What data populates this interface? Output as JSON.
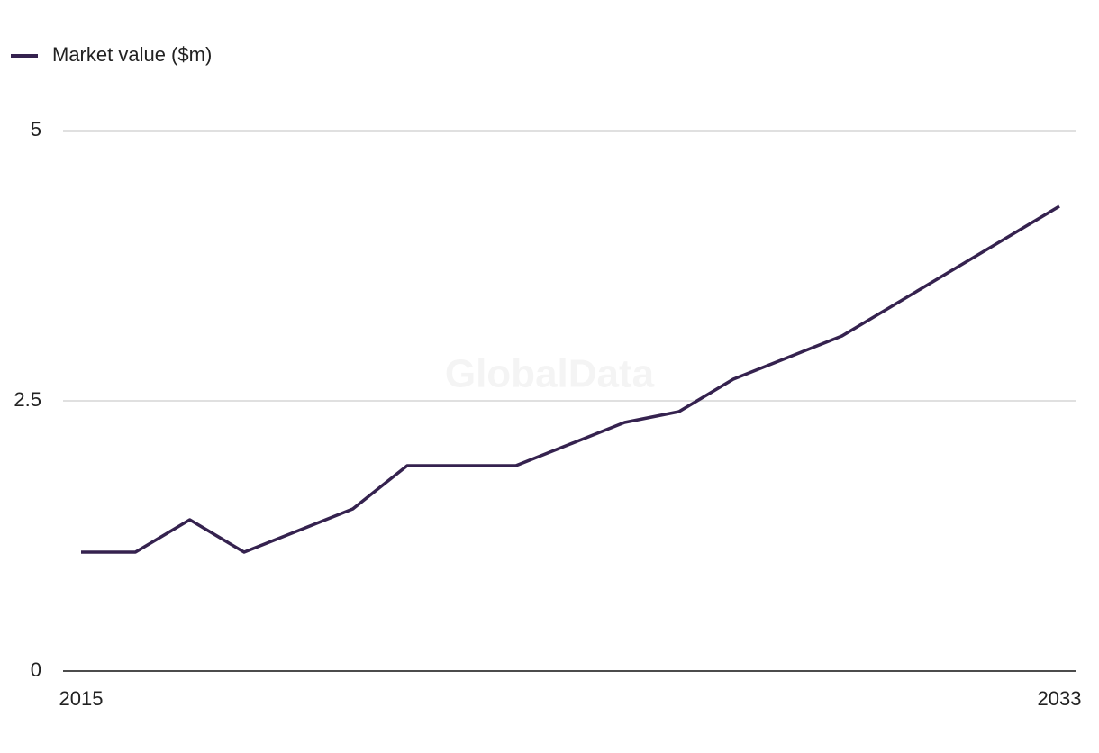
{
  "chart_data": {
    "type": "line",
    "legend_label": "Market value ($m)",
    "watermark": "GlobalData",
    "x": [
      2015,
      2016,
      2017,
      2018,
      2019,
      2020,
      2021,
      2022,
      2023,
      2024,
      2025,
      2026,
      2027,
      2028,
      2029,
      2030,
      2031,
      2032,
      2033
    ],
    "series": [
      {
        "name": "Market value ($m)",
        "color": "#35224f",
        "values": [
          1.1,
          1.1,
          1.4,
          1.1,
          1.3,
          1.5,
          1.9,
          1.9,
          1.9,
          2.1,
          2.3,
          2.4,
          2.7,
          2.9,
          3.1,
          3.4,
          3.7,
          4.0,
          4.3
        ]
      }
    ],
    "xlim": [
      2015,
      2033
    ],
    "xticks": [
      2015,
      2033
    ],
    "ylim": [
      0,
      5
    ],
    "yticks": [
      0,
      2.5,
      5
    ],
    "grid": true
  }
}
